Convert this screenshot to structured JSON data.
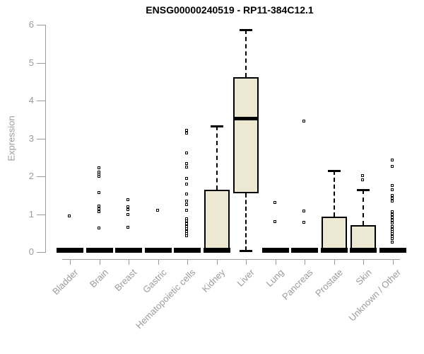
{
  "chart_data": {
    "type": "boxplot",
    "title": "ENSG00000240519 - RP11-384C12.1",
    "xlabel": "",
    "ylabel": "Expression",
    "ylim": [
      0,
      6
    ],
    "yticks": [
      0,
      1,
      2,
      3,
      4,
      5,
      6
    ],
    "grid": false,
    "legend": "none",
    "colors": {
      "box_fill": "#EDE8D1",
      "box_border": "#000000",
      "median": "#000000",
      "whisker": "#000000",
      "axis": "#9B9B9B",
      "tick_label": "#9B9B9B",
      "title": "#000000"
    },
    "categories": [
      "Bladder",
      "Brain",
      "Breast",
      "Gastric",
      "Hematopoietic cells",
      "Kidney",
      "Liver",
      "Lung",
      "Pancreas",
      "Prostate",
      "Skin",
      "Unknown / Other"
    ],
    "series": [
      {
        "name": "Bladder",
        "whisker_low": 0,
        "q1": 0,
        "median": 0,
        "q3": 0,
        "whisker_high": 0,
        "outliers": [
          0.93
        ]
      },
      {
        "name": "Brain",
        "whisker_low": 0,
        "q1": 0,
        "median": 0,
        "q3": 0,
        "whisker_high": 0,
        "outliers": [
          2.21,
          2.1,
          2.04,
          1.98,
          1.55,
          1.2,
          1.12,
          1.05,
          0.62
        ]
      },
      {
        "name": "Breast",
        "whisker_low": 0,
        "q1": 0,
        "median": 0,
        "q3": 0,
        "whisker_high": 0,
        "outliers": [
          1.36,
          1.18,
          1.1,
          0.98,
          0.64
        ]
      },
      {
        "name": "Gastric",
        "whisker_low": 0,
        "q1": 0,
        "median": 0,
        "q3": 0,
        "whisker_high": 0,
        "outliers": [
          1.08
        ]
      },
      {
        "name": "Hematopoietic cells",
        "whisker_low": 0,
        "q1": 0,
        "median": 0,
        "q3": 0,
        "whisker_high": 0,
        "outliers": [
          3.2,
          3.13,
          2.6,
          2.32,
          2.22,
          1.93,
          1.78,
          1.51,
          1.33,
          1.24,
          1.08,
          0.86,
          0.8,
          0.73,
          0.66,
          0.6,
          0.53,
          0.47,
          0.42
        ]
      },
      {
        "name": "Kidney",
        "whisker_low": 0,
        "q1": 0,
        "median": 0.02,
        "q3": 1.64,
        "whisker_high": 3.33,
        "outliers": []
      },
      {
        "name": "Liver",
        "whisker_low": 0.03,
        "q1": 1.55,
        "median": 3.53,
        "q3": 4.62,
        "whisker_high": 5.87,
        "outliers": []
      },
      {
        "name": "Lung",
        "whisker_low": 0,
        "q1": 0,
        "median": 0,
        "q3": 0,
        "whisker_high": 0,
        "outliers": [
          1.29,
          0.79
        ]
      },
      {
        "name": "Pancreas",
        "whisker_low": 0,
        "q1": 0,
        "median": 0,
        "q3": 0,
        "whisker_high": 0,
        "outliers": [
          3.44,
          1.07,
          0.77
        ]
      },
      {
        "name": "Prostate",
        "whisker_low": 0,
        "q1": 0,
        "median": 0.02,
        "q3": 0.94,
        "whisker_high": 2.15,
        "outliers": []
      },
      {
        "name": "Skin",
        "whisker_low": 0,
        "q1": 0,
        "median": 0.02,
        "q3": 0.71,
        "whisker_high": 1.64,
        "outliers": [
          2.0,
          1.89
        ]
      },
      {
        "name": "Unknown / Other",
        "whisker_low": 0,
        "q1": 0,
        "median": 0,
        "q3": 0,
        "whisker_high": 0,
        "outliers": [
          2.41,
          2.24,
          1.74,
          1.62,
          1.48,
          1.4,
          1.33,
          1.05,
          0.97,
          0.9,
          0.82,
          0.74,
          0.66,
          0.58,
          0.52,
          0.46,
          0.4,
          0.33,
          0.24
        ]
      }
    ]
  }
}
